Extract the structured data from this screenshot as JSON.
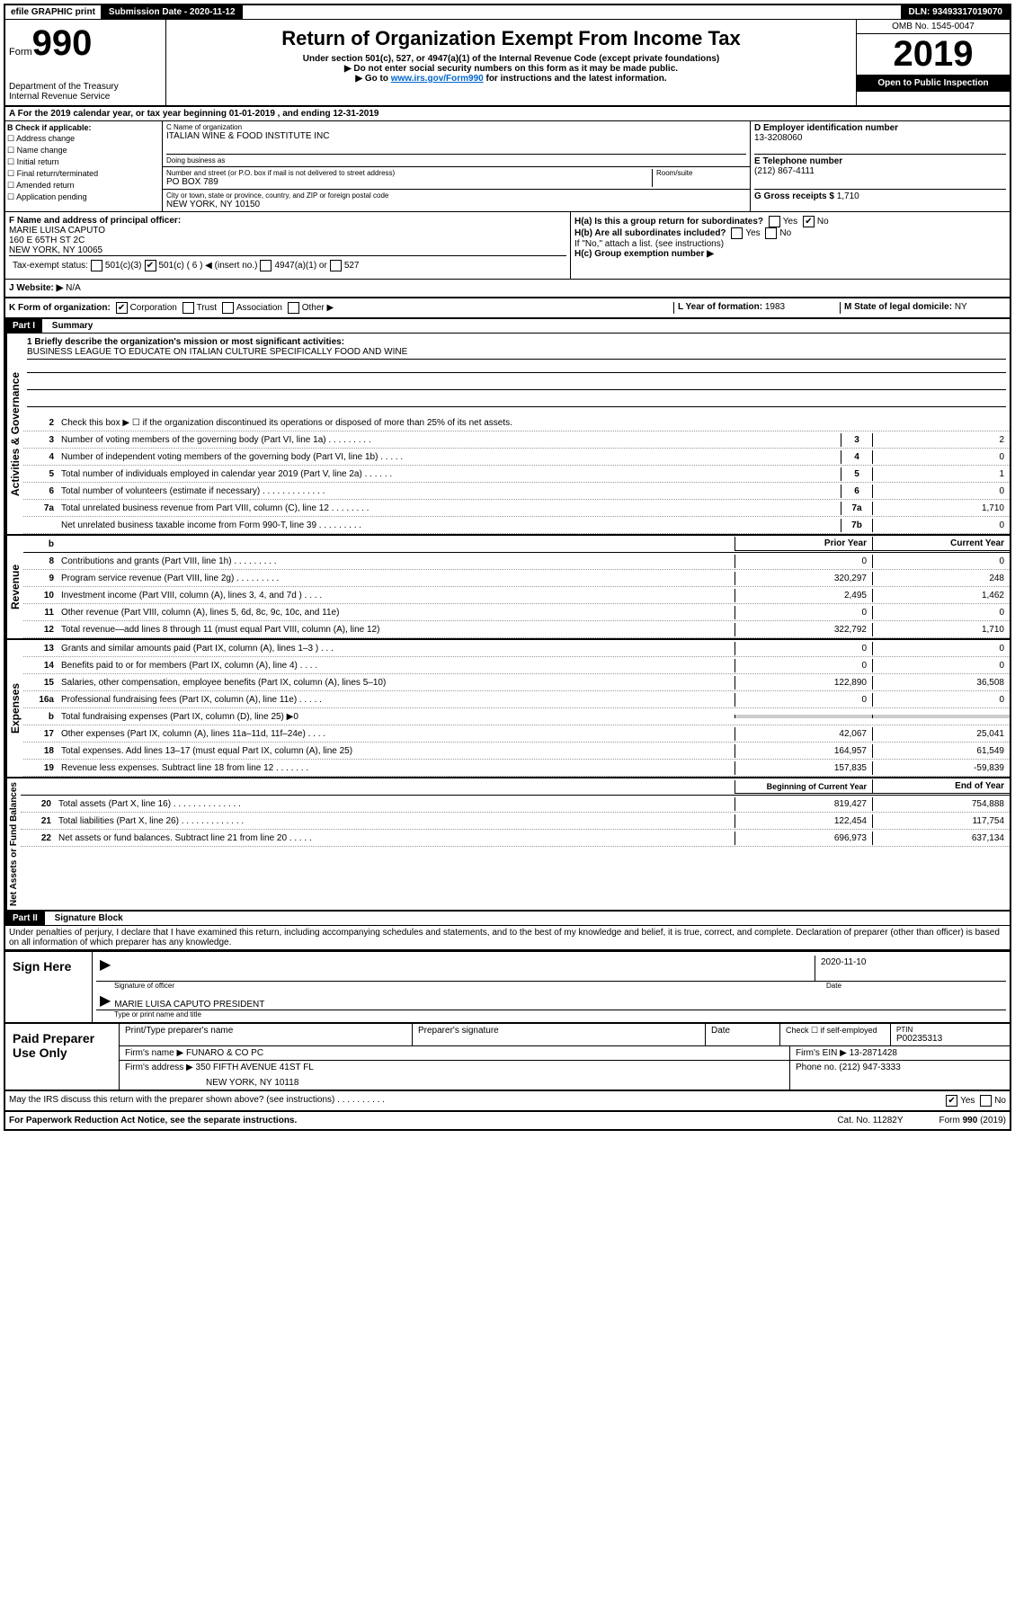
{
  "top": {
    "efile": "efile GRAPHIC print",
    "sub_label": "Submission Date - 2020-11-12",
    "dln": "DLN: 93493317019070"
  },
  "header": {
    "form_label": "Form",
    "form_num": "990",
    "dept": "Department of the Treasury",
    "irs": "Internal Revenue Service",
    "title": "Return of Organization Exempt From Income Tax",
    "sub1": "Under section 501(c), 527, or 4947(a)(1) of the Internal Revenue Code (except private foundations)",
    "sub2": "▶ Do not enter social security numbers on this form as it may be made public.",
    "sub3_pre": "▶ Go to ",
    "sub3_link": "www.irs.gov/Form990",
    "sub3_post": " for instructions and the latest information.",
    "omb": "OMB No. 1545-0047",
    "year": "2019",
    "open": "Open to Public Inspection"
  },
  "a": {
    "text": "For the 2019 calendar year, or tax year beginning 01-01-2019    , and ending 12-31-2019"
  },
  "b": {
    "label": "B Check if applicable:",
    "items": [
      "Address change",
      "Name change",
      "Initial return",
      "Final return/terminated",
      "Amended return",
      "Application pending"
    ]
  },
  "c": {
    "name_label": "C Name of organization",
    "name": "ITALIAN WINE & FOOD INSTITUTE INC",
    "dba_label": "Doing business as",
    "dba": "",
    "addr_label": "Number and street (or P.O. box if mail is not delivered to street address)",
    "addr": "PO BOX 789",
    "room_label": "Room/suite",
    "city_label": "City or town, state or province, country, and ZIP or foreign postal code",
    "city": "NEW YORK, NY  10150"
  },
  "d": {
    "label": "D Employer identification number",
    "ein": "13-3208060"
  },
  "e": {
    "label": "E Telephone number",
    "phone": "(212) 867-4111"
  },
  "g": {
    "label": "G Gross receipts $ ",
    "val": "1,710"
  },
  "f": {
    "label": "F  Name and address of principal officer:",
    "name": "MARIE LUISA CAPUTO",
    "addr1": "160 E 65TH ST 2C",
    "addr2": "NEW YORK, NY 10065"
  },
  "h": {
    "a_label": "H(a)  Is this a group return for subordinates?",
    "b_label": "H(b)  Are all subordinates included?",
    "b_note": "If \"No,\" attach a list. (see instructions)",
    "c_label": "H(c)  Group exemption number ▶"
  },
  "i": {
    "label": "Tax-exempt status:",
    "opts": [
      "501(c)(3)",
      "501(c) ( 6 ) ◀ (insert no.)",
      "4947(a)(1) or",
      "527"
    ]
  },
  "j": {
    "label": "J    Website: ▶",
    "val": "N/A"
  },
  "k": {
    "label": "K Form of organization:",
    "opts": [
      "Corporation",
      "Trust",
      "Association",
      "Other ▶"
    ],
    "l_label": "L Year of formation: ",
    "l_val": "1983",
    "m_label": "M State of legal domicile: ",
    "m_val": "NY"
  },
  "part1": {
    "label": "Part I",
    "title": "Summary"
  },
  "governance": {
    "label": "Activities & Governance",
    "l1_label": "1  Briefly describe the organization's mission or most significant activities:",
    "l1_text": "BUSINESS LEAGUE TO EDUCATE ON ITALIAN CULTURE SPECIFICALLY FOOD AND WINE",
    "l2": "Check this box ▶ ☐  if the organization discontinued its operations or disposed of more than 25% of its net assets.",
    "lines": [
      {
        "n": "3",
        "d": "Number of voting members of the governing body (Part VI, line 1a)  .   .   .   .   .   .   .   .   .",
        "box": "3",
        "v": "2"
      },
      {
        "n": "4",
        "d": "Number of independent voting members of the governing body (Part VI, line 1b)   .   .   .   .   .",
        "box": "4",
        "v": "0"
      },
      {
        "n": "5",
        "d": "Total number of individuals employed in calendar year 2019 (Part V, line 2a)   .   .   .   .   .   .",
        "box": "5",
        "v": "1"
      },
      {
        "n": "6",
        "d": "Total number of volunteers (estimate if necessary)   .   .   .   .   .   .   .   .   .   .   .   .   .",
        "box": "6",
        "v": "0"
      },
      {
        "n": "7a",
        "d": "Total unrelated business revenue from Part VIII, column (C), line 12   .   .   .   .   .   .   .   .",
        "box": "7a",
        "v": "1,710"
      },
      {
        "n": "",
        "d": "Net unrelated business taxable income from Form 990-T, line 39   .   .   .   .   .   .   .   .   .",
        "box": "7b",
        "v": "0"
      }
    ]
  },
  "revenue": {
    "label": "Revenue",
    "h1": "Prior Year",
    "h2": "Current Year",
    "lines": [
      {
        "n": "8",
        "d": "Contributions and grants (Part VIII, line 1h)   .   .   .   .   .   .   .   .   .",
        "v1": "0",
        "v2": "0"
      },
      {
        "n": "9",
        "d": "Program service revenue (Part VIII, line 2g)   .   .   .   .   .   .   .   .   .",
        "v1": "320,297",
        "v2": "248"
      },
      {
        "n": "10",
        "d": "Investment income (Part VIII, column (A), lines 3, 4, and 7d )   .   .   .   .",
        "v1": "2,495",
        "v2": "1,462"
      },
      {
        "n": "11",
        "d": "Other revenue (Part VIII, column (A), lines 5, 6d, 8c, 9c, 10c, and 11e)",
        "v1": "0",
        "v2": "0"
      },
      {
        "n": "12",
        "d": "Total revenue—add lines 8 through 11 (must equal Part VIII, column (A), line 12)",
        "v1": "322,792",
        "v2": "1,710"
      }
    ]
  },
  "expenses": {
    "label": "Expenses",
    "lines": [
      {
        "n": "13",
        "d": "Grants and similar amounts paid (Part IX, column (A), lines 1–3 )   .   .   .",
        "v1": "0",
        "v2": "0"
      },
      {
        "n": "14",
        "d": "Benefits paid to or for members (Part IX, column (A), line 4)   .   .   .   .",
        "v1": "0",
        "v2": "0"
      },
      {
        "n": "15",
        "d": "Salaries, other compensation, employee benefits (Part IX, column (A), lines 5–10)",
        "v1": "122,890",
        "v2": "36,508"
      },
      {
        "n": "16a",
        "d": "Professional fundraising fees (Part IX, column (A), line 11e)   .   .   .   .   .",
        "v1": "0",
        "v2": "0"
      },
      {
        "n": "b",
        "d": "Total fundraising expenses (Part IX, column (D), line 25) ▶0",
        "v1": "",
        "v2": "",
        "shaded": true
      },
      {
        "n": "17",
        "d": "Other expenses (Part IX, column (A), lines 11a–11d, 11f–24e)   .   .   .   .",
        "v1": "42,067",
        "v2": "25,041"
      },
      {
        "n": "18",
        "d": "Total expenses. Add lines 13–17 (must equal Part IX, column (A), line 25)",
        "v1": "164,957",
        "v2": "61,549"
      },
      {
        "n": "19",
        "d": "Revenue less expenses. Subtract line 18 from line 12   .   .   .   .   .   .   .",
        "v1": "157,835",
        "v2": "-59,839"
      }
    ]
  },
  "netassets": {
    "label": "Net Assets or Fund Balances",
    "h1": "Beginning of Current Year",
    "h2": "End of Year",
    "lines": [
      {
        "n": "20",
        "d": "Total assets (Part X, line 16)   .   .   .   .   .   .   .   .   .   .   .   .   .   .",
        "v1": "819,427",
        "v2": "754,888"
      },
      {
        "n": "21",
        "d": "Total liabilities (Part X, line 26)   .   .   .   .   .   .   .   .   .   .   .   .   .",
        "v1": "122,454",
        "v2": "117,754"
      },
      {
        "n": "22",
        "d": "Net assets or fund balances. Subtract line 21 from line 20   .   .   .   .   .",
        "v1": "696,973",
        "v2": "637,134"
      }
    ]
  },
  "part2": {
    "label": "Part II",
    "title": "Signature Block",
    "perjury": "Under penalties of perjury, I declare that I have examined this return, including accompanying schedules and statements, and to the best of my knowledge and belief, it is true, correct, and complete. Declaration of preparer (other than officer) is based on all information of which preparer has any knowledge."
  },
  "sign": {
    "label": "Sign Here",
    "sig_label": "Signature of officer",
    "date_label": "Date",
    "date": "2020-11-10",
    "name": "MARIE LUISA CAPUTO  PRESIDENT",
    "name_label": "Type or print name and title"
  },
  "preparer": {
    "label": "Paid Preparer Use Only",
    "h1": "Print/Type preparer's name",
    "h2": "Preparer's signature",
    "h3": "Date",
    "h4_label": "Check ☐ if self-employed",
    "h5_label": "PTIN",
    "ptin": "P00235313",
    "firm_label": "Firm's name    ▶",
    "firm": "FUNARO & CO PC",
    "ein_label": "Firm's EIN ▶",
    "ein": "13-2871428",
    "addr_label": "Firm's address ▶",
    "addr1": "350 FIFTH AVENUE 41ST FL",
    "addr2": "NEW YORK, NY  10118",
    "phone_label": "Phone no. ",
    "phone": "(212) 947-3333"
  },
  "discuss": {
    "text": "May the IRS discuss this return with the preparer shown above? (see instructions)   .   .   .   .   .   .   .   .   .   .",
    "yes": "Yes",
    "no": "No"
  },
  "footer": {
    "left": "For Paperwork Reduction Act Notice, see the separate instructions.",
    "mid": "Cat. No. 11282Y",
    "right": "Form 990 (2019)"
  }
}
